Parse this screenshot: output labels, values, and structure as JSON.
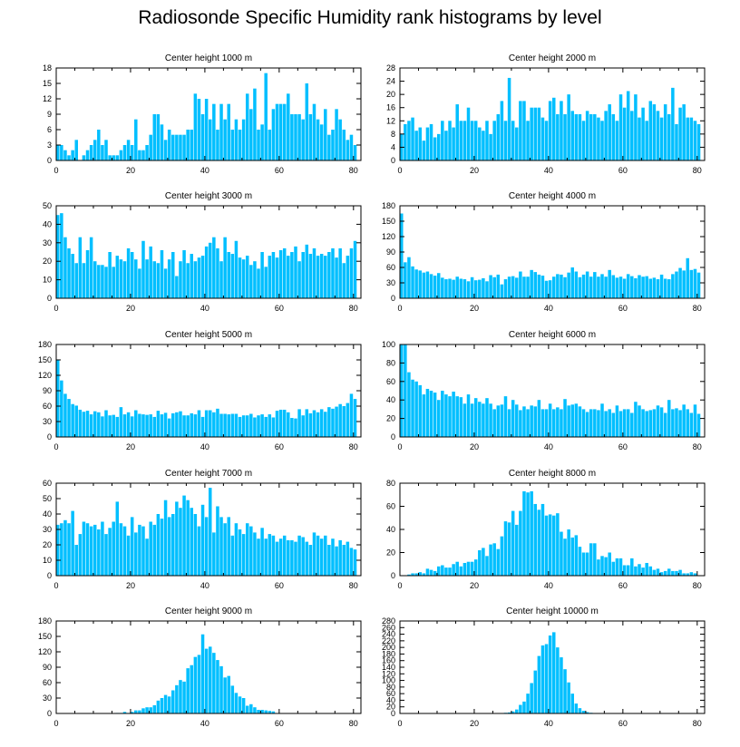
{
  "page": {
    "title": "Radiosonde Specific Humidity rank histograms by level",
    "bar_color": "#00bfff",
    "axis_color": "#000000"
  },
  "chart_data": [
    {
      "type": "bar",
      "title": "Center height 1000 m",
      "xlim": [
        0,
        82
      ],
      "ylim": [
        0,
        18
      ],
      "xticks": [
        0,
        20,
        40,
        60,
        80
      ],
      "yticks": [
        0,
        3,
        6,
        9,
        12,
        15,
        18
      ],
      "values": [
        3,
        3,
        2,
        1,
        2,
        4,
        0,
        1,
        2,
        3,
        4,
        6,
        3,
        4,
        1,
        1,
        1,
        2,
        3,
        4,
        3,
        8,
        2,
        2,
        3,
        5,
        9,
        9,
        7,
        4,
        6,
        5,
        5,
        5,
        5,
        6,
        6,
        13,
        12,
        9,
        12,
        8,
        11,
        6,
        11,
        8,
        11,
        6,
        8,
        6,
        8,
        13,
        10,
        14,
        6,
        7,
        17,
        6,
        10,
        11,
        11,
        11,
        13,
        9,
        9,
        9,
        8,
        15,
        9,
        11,
        8,
        7,
        10,
        5,
        6,
        10,
        8,
        6,
        4,
        5,
        3
      ]
    },
    {
      "type": "bar",
      "title": "Center height 2000 m",
      "xlim": [
        0,
        82
      ],
      "ylim": [
        0,
        28
      ],
      "xticks": [
        0,
        20,
        40,
        60,
        80
      ],
      "yticks": [
        0,
        4,
        8,
        12,
        16,
        20,
        24,
        28
      ],
      "values": [
        8,
        11,
        12,
        13,
        9,
        10,
        6,
        10,
        11,
        7,
        8,
        12,
        9,
        12,
        10,
        17,
        12,
        12,
        16,
        12,
        12,
        10,
        9,
        12,
        8,
        12,
        14,
        18,
        12,
        25,
        12,
        10,
        18,
        18,
        12,
        16,
        16,
        16,
        13,
        12,
        18,
        19,
        14,
        18,
        14,
        20,
        15,
        14,
        14,
        12,
        15,
        14,
        14,
        13,
        12,
        15,
        17,
        14,
        12,
        20,
        16,
        21,
        15,
        20,
        13,
        16,
        12,
        18,
        17,
        15,
        13,
        17,
        14,
        22,
        11,
        16,
        17,
        13,
        13,
        12,
        11
      ]
    },
    {
      "type": "bar",
      "title": "Center height 3000 m",
      "xlim": [
        0,
        82
      ],
      "ylim": [
        0,
        50
      ],
      "xticks": [
        0,
        20,
        40,
        60,
        80
      ],
      "yticks": [
        0,
        10,
        20,
        30,
        40,
        50
      ],
      "values": [
        45,
        46,
        33,
        27,
        24,
        19,
        33,
        19,
        26,
        33,
        20,
        18,
        18,
        17,
        25,
        17,
        23,
        21,
        20,
        27,
        25,
        21,
        16,
        31,
        21,
        28,
        20,
        19,
        26,
        16,
        21,
        25,
        12,
        20,
        26,
        19,
        24,
        20,
        22,
        23,
        28,
        30,
        33,
        27,
        20,
        33,
        25,
        24,
        31,
        22,
        21,
        23,
        18,
        20,
        16,
        25,
        17,
        23,
        25,
        22,
        26,
        27,
        23,
        25,
        28,
        20,
        25,
        29,
        24,
        27,
        23,
        24,
        23,
        25,
        27,
        22,
        27,
        19,
        23,
        27,
        31
      ]
    },
    {
      "type": "bar",
      "title": "Center height 4000 m",
      "xlim": [
        0,
        82
      ],
      "ylim": [
        0,
        180
      ],
      "xticks": [
        0,
        20,
        40,
        60,
        80
      ],
      "yticks": [
        0,
        30,
        60,
        90,
        120,
        150,
        180
      ],
      "values": [
        165,
        70,
        80,
        62,
        56,
        54,
        50,
        52,
        47,
        44,
        49,
        40,
        37,
        38,
        36,
        42,
        38,
        37,
        33,
        41,
        35,
        36,
        39,
        33,
        45,
        41,
        46,
        27,
        37,
        42,
        43,
        40,
        52,
        42,
        42,
        55,
        51,
        46,
        44,
        34,
        35,
        42,
        47,
        46,
        41,
        50,
        60,
        52,
        41,
        46,
        52,
        42,
        51,
        42,
        47,
        42,
        55,
        45,
        40,
        42,
        38,
        47,
        43,
        39,
        45,
        42,
        43,
        38,
        40,
        37,
        46,
        38,
        37,
        47,
        52,
        59,
        54,
        78,
        55,
        57,
        50
      ]
    },
    {
      "type": "bar",
      "title": "Center height 5000 m",
      "xlim": [
        0,
        82
      ],
      "ylim": [
        0,
        180
      ],
      "xticks": [
        0,
        20,
        40,
        60,
        80
      ],
      "yticks": [
        0,
        30,
        60,
        90,
        120,
        150,
        180
      ],
      "values": [
        150,
        110,
        84,
        74,
        64,
        61,
        53,
        49,
        51,
        44,
        50,
        48,
        40,
        52,
        42,
        43,
        39,
        58,
        44,
        48,
        40,
        52,
        45,
        44,
        43,
        44,
        39,
        51,
        44,
        47,
        36,
        46,
        48,
        50,
        42,
        42,
        46,
        44,
        52,
        39,
        52,
        52,
        48,
        55,
        45,
        45,
        44,
        45,
        45,
        39,
        42,
        42,
        45,
        38,
        42,
        44,
        39,
        44,
        38,
        51,
        53,
        53,
        48,
        37,
        36,
        54,
        42,
        54,
        46,
        52,
        48,
        54,
        49,
        58,
        55,
        59,
        64,
        60,
        66,
        84,
        74
      ]
    },
    {
      "type": "bar",
      "title": "Center height 6000 m",
      "xlim": [
        0,
        82
      ],
      "ylim": [
        0,
        100
      ],
      "xticks": [
        0,
        20,
        40,
        60,
        80
      ],
      "yticks": [
        0,
        20,
        40,
        60,
        80,
        100
      ],
      "values": [
        100,
        100,
        70,
        62,
        60,
        56,
        46,
        52,
        50,
        48,
        40,
        50,
        46,
        44,
        49,
        44,
        43,
        36,
        46,
        36,
        42,
        38,
        36,
        42,
        36,
        30,
        34,
        35,
        44,
        30,
        40,
        35,
        29,
        33,
        30,
        34,
        33,
        40,
        30,
        30,
        36,
        30,
        32,
        30,
        41,
        34,
        35,
        36,
        33,
        30,
        27,
        30,
        30,
        29,
        36,
        28,
        30,
        26,
        34,
        28,
        30,
        30,
        26,
        38,
        34,
        30,
        28,
        29,
        30,
        34,
        32,
        26,
        40,
        30,
        31,
        29,
        35,
        30,
        26,
        35,
        25
      ]
    },
    {
      "type": "bar",
      "title": "Center height 7000 m",
      "xlim": [
        0,
        82
      ],
      "ylim": [
        0,
        60
      ],
      "xticks": [
        0,
        20,
        40,
        60,
        80
      ],
      "yticks": [
        0,
        10,
        20,
        30,
        40,
        50,
        60
      ],
      "values": [
        33,
        34,
        36,
        34,
        42,
        20,
        27,
        35,
        34,
        32,
        33,
        30,
        35,
        27,
        31,
        35,
        48,
        34,
        32,
        26,
        38,
        28,
        33,
        32,
        24,
        35,
        33,
        40,
        37,
        49,
        38,
        40,
        48,
        44,
        52,
        49,
        44,
        40,
        32,
        46,
        38,
        57,
        28,
        45,
        38,
        34,
        38,
        26,
        34,
        30,
        27,
        34,
        32,
        28,
        24,
        31,
        24,
        27,
        26,
        22,
        24,
        26,
        23,
        23,
        22,
        26,
        25,
        22,
        20,
        28,
        26,
        24,
        26,
        20,
        24,
        19,
        23,
        20,
        22,
        18,
        17
      ]
    },
    {
      "type": "bar",
      "title": "Center height 8000 m",
      "xlim": [
        0,
        82
      ],
      "ylim": [
        0,
        80
      ],
      "xticks": [
        0,
        20,
        40,
        60,
        80
      ],
      "yticks": [
        0,
        20,
        40,
        60,
        80
      ],
      "values": [
        0,
        0,
        1,
        2,
        2,
        3,
        2,
        6,
        5,
        4,
        8,
        9,
        7,
        7,
        10,
        12,
        8,
        11,
        12,
        12,
        14,
        22,
        24,
        17,
        27,
        28,
        23,
        34,
        47,
        46,
        56,
        44,
        56,
        73,
        72,
        73,
        62,
        57,
        62,
        52,
        53,
        52,
        54,
        38,
        32,
        40,
        33,
        35,
        25,
        20,
        20,
        28,
        28,
        14,
        17,
        16,
        20,
        12,
        15,
        15,
        9,
        9,
        15,
        8,
        10,
        7,
        11,
        8,
        5,
        6,
        3,
        4,
        6,
        4,
        4,
        5,
        2,
        2,
        3,
        2,
        0
      ]
    },
    {
      "type": "bar",
      "title": "Center height 9000 m",
      "xlim": [
        0,
        82
      ],
      "ylim": [
        0,
        180
      ],
      "xticks": [
        0,
        20,
        40,
        60,
        80
      ],
      "yticks": [
        0,
        30,
        60,
        90,
        120,
        150,
        180
      ],
      "values": [
        0,
        0,
        0,
        0,
        0,
        0,
        0,
        0,
        0,
        0,
        0,
        0,
        0,
        0,
        0,
        0,
        1,
        1,
        3,
        1,
        3,
        6,
        6,
        10,
        12,
        12,
        16,
        25,
        30,
        36,
        33,
        45,
        55,
        65,
        62,
        88,
        94,
        110,
        114,
        154,
        126,
        130,
        118,
        104,
        92,
        70,
        73,
        54,
        40,
        33,
        30,
        15,
        18,
        12,
        7,
        7,
        6,
        5,
        4,
        0,
        0,
        0,
        0,
        0,
        0,
        0,
        0,
        0,
        0,
        0,
        0,
        0,
        0,
        0,
        0,
        0,
        0,
        0,
        0,
        0,
        0
      ]
    },
    {
      "type": "bar",
      "title": "Center height 10000 m",
      "xlim": [
        0,
        82
      ],
      "ylim": [
        0,
        280
      ],
      "xticks": [
        0,
        20,
        40,
        60,
        80
      ],
      "yticks": [
        0,
        20,
        40,
        60,
        80,
        100,
        120,
        140,
        160,
        180,
        200,
        220,
        240,
        260,
        280
      ],
      "values": [
        0,
        0,
        0,
        0,
        0,
        0,
        0,
        0,
        0,
        0,
        0,
        0,
        0,
        0,
        0,
        0,
        0,
        0,
        0,
        0,
        0,
        0,
        0,
        0,
        0,
        0,
        0,
        1,
        2,
        3,
        6,
        12,
        26,
        36,
        60,
        92,
        130,
        174,
        206,
        210,
        236,
        246,
        200,
        170,
        134,
        94,
        60,
        30,
        16,
        8,
        4,
        2,
        1,
        0,
        0,
        0,
        0,
        0,
        0,
        0,
        0,
        0,
        0,
        0,
        0,
        0,
        0,
        0,
        0,
        0,
        0,
        0,
        0,
        0,
        0,
        0,
        0,
        0,
        0,
        0,
        0
      ]
    }
  ]
}
